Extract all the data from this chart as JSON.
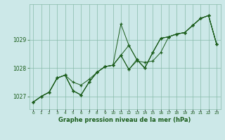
{
  "title": "Graphe pression niveau de la mer (hPa)",
  "bg_color": "#cce8e8",
  "grid_color": "#88bbaa",
  "line_color": "#1a5c1a",
  "xlim": [
    -0.5,
    23.5
  ],
  "ylim": [
    1026.55,
    1030.25
  ],
  "yticks": [
    1027,
    1028,
    1029
  ],
  "xticks": [
    0,
    1,
    2,
    3,
    4,
    5,
    6,
    7,
    8,
    9,
    10,
    11,
    12,
    13,
    14,
    15,
    16,
    17,
    18,
    19,
    20,
    21,
    22,
    23
  ],
  "series": [
    [
      1026.8,
      1027.0,
      1027.15,
      1027.65,
      1027.75,
      1027.5,
      1027.4,
      1027.6,
      1027.85,
      1028.05,
      1028.1,
      1028.45,
      1027.95,
      1028.25,
      1028.2,
      1028.25,
      1028.55,
      1029.1,
      1029.2,
      1029.25,
      1029.5,
      1029.75,
      1029.85,
      1028.85
    ],
    [
      1026.8,
      1027.0,
      1027.15,
      1027.65,
      1027.75,
      1027.2,
      1027.05,
      1027.5,
      1027.85,
      1028.05,
      1028.1,
      1029.55,
      1028.8,
      1028.3,
      1028.0,
      1028.55,
      1029.05,
      1029.1,
      1029.2,
      1029.25,
      1029.5,
      1029.75,
      1029.85,
      1028.85
    ],
    [
      1026.8,
      1027.0,
      1027.15,
      1027.65,
      1027.75,
      1027.2,
      1027.05,
      1027.5,
      1027.85,
      1028.05,
      1028.1,
      1028.45,
      1028.8,
      1028.3,
      1028.0,
      1028.55,
      1029.05,
      1029.1,
      1029.2,
      1029.25,
      1029.5,
      1029.75,
      1029.85,
      1028.85
    ],
    [
      1026.8,
      1027.0,
      1027.15,
      1027.65,
      1027.75,
      1027.2,
      1027.05,
      1027.5,
      1027.85,
      1028.05,
      1028.1,
      1028.45,
      1027.95,
      1028.3,
      1028.0,
      1028.55,
      1029.05,
      1029.1,
      1029.2,
      1029.25,
      1029.5,
      1029.75,
      1029.85,
      1028.85
    ]
  ]
}
